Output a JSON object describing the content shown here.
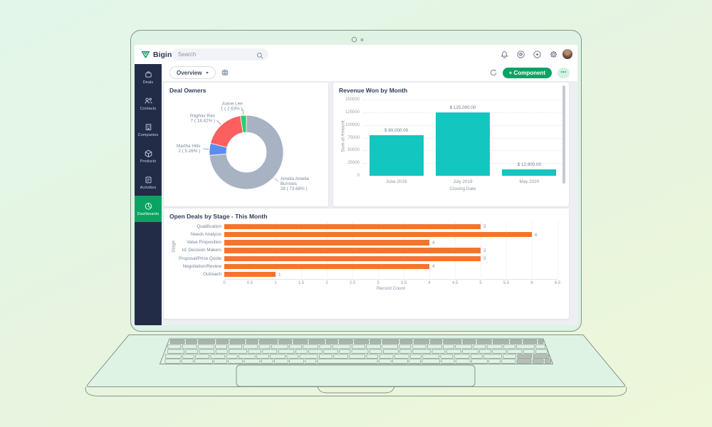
{
  "topbar": {
    "logo_text": "Bigin",
    "search_placeholder": "Search",
    "icons": [
      "notification-bell-icon",
      "announcement-icon",
      "add-icon",
      "settings-gear-icon"
    ]
  },
  "sidebar": {
    "items": [
      {
        "label": "Deals",
        "icon": "deals-icon",
        "active": false
      },
      {
        "label": "Contacts",
        "icon": "contacts-icon",
        "active": false
      },
      {
        "label": "Companies",
        "icon": "companies-icon",
        "active": false
      },
      {
        "label": "Products",
        "icon": "products-icon",
        "active": false
      },
      {
        "label": "Activities",
        "icon": "activities-icon",
        "active": false
      },
      {
        "label": "Dashboards",
        "icon": "dashboards-icon",
        "active": true
      }
    ]
  },
  "toolbar": {
    "dashboard_name": "Overview",
    "component_button_label": "+ Component",
    "more_label": "•••"
  },
  "colors": {
    "brand_green": "#0aa364",
    "sidebar_bg": "#232c47",
    "content_bg": "#edeff3"
  },
  "chart_data": [
    {
      "type": "pie",
      "subtype": "donut",
      "title": "Deal Owners",
      "total": 38,
      "slices": [
        {
          "name": "Amelia Amelia Burrows",
          "value": 28,
          "percent": "73.68%",
          "color": "#a7b2c3"
        },
        {
          "name": "Martha Hills",
          "value": 2,
          "percent": "5.26%",
          "color": "#5b8cf0"
        },
        {
          "name": "Raghav Rao",
          "value": 7,
          "percent": "18.42%",
          "color": "#fb5f5f"
        },
        {
          "name": "Joane Lee",
          "value": 1,
          "percent": "2.63%",
          "color": "#2fcd71"
        }
      ]
    },
    {
      "type": "bar",
      "title": "Revenue Won by Month",
      "categories": [
        "June 2019",
        "July 2019",
        "May 2020"
      ],
      "values": [
        80000,
        125000,
        12900
      ],
      "bar_labels": [
        "$ 80,000.00",
        "$ 125,000.00",
        "$ 12,900.00"
      ],
      "xlabel": "Closing Date",
      "ylabel": "Sum of Amount",
      "ylim": [
        0,
        150000
      ],
      "yticks": [
        0,
        25000,
        50000,
        75000,
        100000,
        125000,
        150000
      ],
      "bar_color": "#13c6c0"
    },
    {
      "type": "bar",
      "orientation": "horizontal",
      "title": "Open Deals by Stage - This Month",
      "categories": [
        "Qualification",
        "Needs Analysis",
        "Value Proposition",
        "Id. Decision Makers",
        "Proposal/Price Quote",
        "Negotiation/Review",
        "Outreach"
      ],
      "values": [
        5,
        6,
        4,
        5,
        5,
        4,
        1
      ],
      "xlabel": "Record Count",
      "ylabel": "Stage",
      "xlim": [
        0,
        6.5
      ],
      "xticks": [
        0,
        0.5,
        1,
        1.5,
        2,
        2.5,
        3,
        3.5,
        4,
        4.5,
        5,
        5.5,
        6,
        6.5
      ],
      "bar_color": "#f5742c"
    }
  ]
}
